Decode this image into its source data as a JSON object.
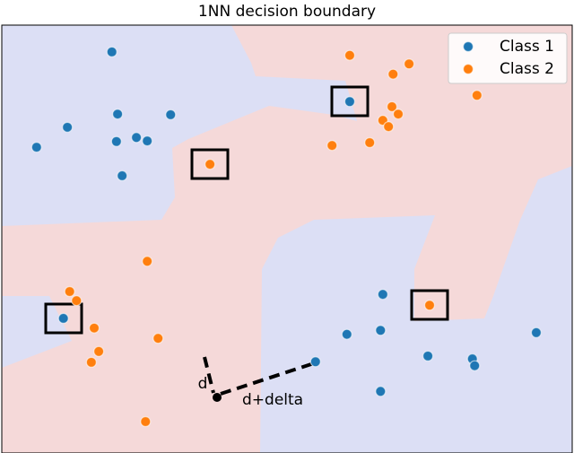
{
  "chart_data": {
    "type": "scatter",
    "title": "1NN decision boundary",
    "xlim": [
      0,
      10
    ],
    "ylim": [
      0,
      7.5
    ],
    "legend": "upper right",
    "series": [
      {
        "name": "Class 1",
        "color": "#1f77b4",
        "x": [
          1.93,
          1.15,
          0.61,
          2.03,
          2.96,
          2.01,
          2.36,
          2.55,
          2.11,
          6.1,
          1.08,
          6.68,
          6.05,
          6.64,
          5.5,
          7.47,
          8.25,
          8.29,
          6.64,
          9.37
        ],
        "values": [
          7.03,
          5.71,
          5.36,
          5.94,
          5.93,
          5.46,
          5.53,
          5.47,
          4.86,
          6.16,
          2.36,
          2.78,
          2.08,
          2.15,
          1.6,
          1.7,
          1.65,
          1.53,
          1.08,
          2.11
        ]
      },
      {
        "name": "Class 2",
        "color": "#ff7f0e",
        "x": [
          6.1,
          7.14,
          6.86,
          8.33,
          6.84,
          6.95,
          6.68,
          6.78,
          6.45,
          5.79,
          3.65,
          2.55,
          1.19,
          1.31,
          1.62,
          2.74,
          1.7,
          1.57,
          2.52,
          7.5
        ],
        "values": [
          6.97,
          6.82,
          6.64,
          6.27,
          6.07,
          5.94,
          5.83,
          5.72,
          5.44,
          5.39,
          5.06,
          3.36,
          2.83,
          2.67,
          2.19,
          2.01,
          1.78,
          1.59,
          0.55,
          2.59
        ]
      }
    ],
    "annotations": [
      "d",
      "d+delta"
    ]
  }
}
